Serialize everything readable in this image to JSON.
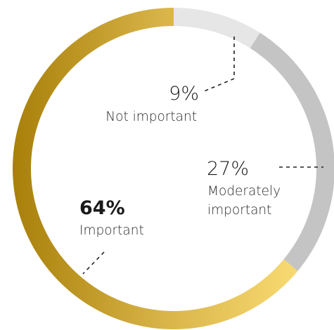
{
  "colors": {
    "important_gold_dark": "#a8800a",
    "important_gold_light": "#f6d870",
    "moderately_gray": "#c4c4c4",
    "not_important_light_gray": "#e6e6e6"
  },
  "chart_data": {
    "type": "pie",
    "variant": "donut",
    "title": "",
    "slices": [
      {
        "label": "Not important",
        "value": 9,
        "display": "9%",
        "color": "#e6e6e6"
      },
      {
        "label": "Moderately important",
        "label_lines": [
          "Moderately",
          "important"
        ],
        "value": 27,
        "display": "27%",
        "color": "#c4c4c4"
      },
      {
        "label": "Important",
        "value": 64,
        "display": "64%",
        "color": "gold-gradient"
      }
    ]
  }
}
